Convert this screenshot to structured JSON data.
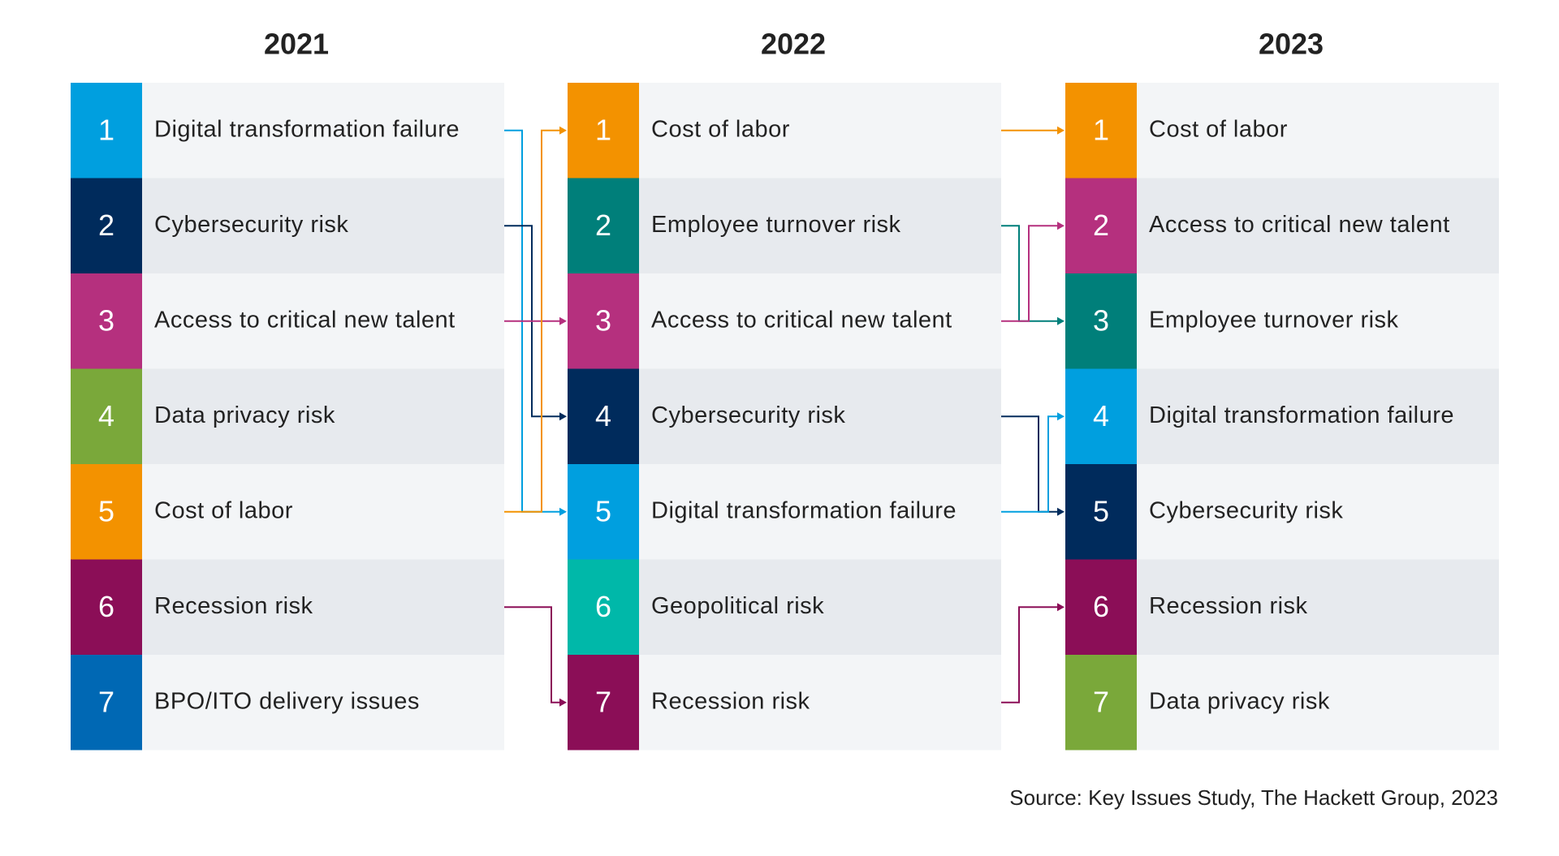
{
  "columns": [
    {
      "year": "2021",
      "items": [
        {
          "rank": 1,
          "label": "Digital transformation failure",
          "color": "#009fdf"
        },
        {
          "rank": 2,
          "label": "Cybersecurity risk",
          "color": "#002b5c"
        },
        {
          "rank": 3,
          "label": "Access to critical new talent",
          "color": "#b5307e"
        },
        {
          "rank": 4,
          "label": "Data privacy risk",
          "color": "#7aa83a"
        },
        {
          "rank": 5,
          "label": "Cost of labor",
          "color": "#f39200"
        },
        {
          "rank": 6,
          "label": "Recession risk",
          "color": "#8b0e57"
        },
        {
          "rank": 7,
          "label": "BPO/ITO delivery issues",
          "color": "#0068b4"
        }
      ]
    },
    {
      "year": "2022",
      "items": [
        {
          "rank": 1,
          "label": "Cost of labor",
          "color": "#f39200"
        },
        {
          "rank": 2,
          "label": "Employee turnover risk",
          "color": "#007f7a"
        },
        {
          "rank": 3,
          "label": "Access to critical new talent",
          "color": "#b5307e"
        },
        {
          "rank": 4,
          "label": "Cybersecurity risk",
          "color": "#002b5c"
        },
        {
          "rank": 5,
          "label": "Digital transformation failure",
          "color": "#009fdf"
        },
        {
          "rank": 6,
          "label": "Geopolitical risk",
          "color": "#00b8a9"
        },
        {
          "rank": 7,
          "label": "Recession risk",
          "color": "#8b0e57"
        }
      ]
    },
    {
      "year": "2023",
      "items": [
        {
          "rank": 1,
          "label": "Cost of labor",
          "color": "#f39200"
        },
        {
          "rank": 2,
          "label": "Access to critical new talent",
          "color": "#b5307e"
        },
        {
          "rank": 3,
          "label": "Employee turnover risk",
          "color": "#007f7a"
        },
        {
          "rank": 4,
          "label": "Digital transformation failure",
          "color": "#009fdf"
        },
        {
          "rank": 5,
          "label": "Cybersecurity risk",
          "color": "#002b5c"
        },
        {
          "rank": 6,
          "label": "Recession risk",
          "color": "#8b0e57"
        },
        {
          "rank": 7,
          "label": "Data privacy risk",
          "color": "#7aa83a"
        }
      ]
    }
  ],
  "source": "Source: Key Issues Study, The Hackett Group, 2023"
}
